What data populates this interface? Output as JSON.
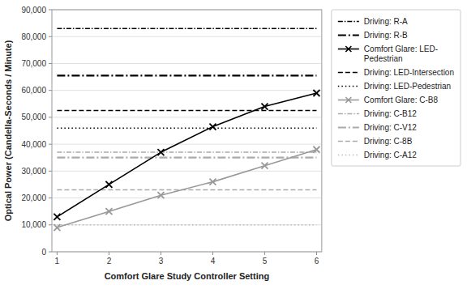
{
  "chart_data": {
    "type": "line",
    "xlabel": "Comfort Glare Study Controller Setting",
    "ylabel": "Optical Power (Candella-Seconds / Minute)",
    "xlim": [
      0.9,
      6.1
    ],
    "xticks": [
      1,
      2,
      3,
      4,
      5,
      6
    ],
    "ylim": [
      0,
      90000
    ],
    "yticks": [
      0,
      {
        "value": 10000,
        "label": "10,000"
      },
      {
        "value": 20000,
        "label": "20,000"
      },
      {
        "value": 30000,
        "label": "30,000"
      },
      {
        "value": 40000,
        "label": "40,000"
      },
      {
        "value": 50000,
        "label": "50,000"
      },
      {
        "value": 60000,
        "label": "60,000"
      },
      {
        "value": 70000,
        "label": "70,000"
      },
      {
        "value": 80000,
        "label": "80,000"
      },
      {
        "value": 90000,
        "label": "90,000"
      }
    ],
    "grid": "y",
    "legend": "right",
    "series": [
      {
        "name": "Driving: R-A",
        "color": "#000000",
        "line_style": "dashdot",
        "x": [
          1,
          6
        ],
        "values": [
          83000,
          83000
        ]
      },
      {
        "name": "Driving: R-B",
        "color": "#000000",
        "line_style": "long-dashdot",
        "x": [
          1,
          6
        ],
        "values": [
          65500,
          65500
        ]
      },
      {
        "name": "Comfort Glare: LED-\nPedestrian",
        "color": "#000000",
        "line_style": "solid",
        "marker": "x",
        "x": [
          1,
          2,
          3,
          4,
          5,
          6
        ],
        "values": [
          13000,
          25000,
          37000,
          46500,
          54000,
          59000
        ]
      },
      {
        "name": "Driving: LED-Intersection",
        "color": "#000000",
        "line_style": "dashed",
        "x": [
          1,
          6
        ],
        "values": [
          52500,
          52500
        ]
      },
      {
        "name": "Driving: LED-Pedestrian",
        "color": "#000000",
        "line_style": "dotted",
        "x": [
          1,
          6
        ],
        "values": [
          46000,
          46000
        ]
      },
      {
        "name": "Comfort Glare: C-B8",
        "color": "#999999",
        "line_style": "solid",
        "marker": "x",
        "x": [
          1,
          2,
          3,
          4,
          5,
          6
        ],
        "values": [
          9000,
          15000,
          21000,
          26000,
          32000,
          38000
        ]
      },
      {
        "name": "Driving: C-B12",
        "color": "#aaaaaa",
        "line_style": "dashdot",
        "x": [
          1,
          6
        ],
        "values": [
          37000,
          37000
        ]
      },
      {
        "name": "Driving: C-V12",
        "color": "#aaaaaa",
        "line_style": "long-dashdot",
        "x": [
          1,
          6
        ],
        "values": [
          35000,
          35000
        ]
      },
      {
        "name": "Driving: C-8B",
        "color": "#aaaaaa",
        "line_style": "dashed",
        "x": [
          1,
          6
        ],
        "values": [
          23000,
          23000
        ]
      },
      {
        "name": "Driving: C-A12",
        "color": "#bbbbbb",
        "line_style": "dotted",
        "x": [
          1,
          6
        ],
        "values": [
          10000,
          10000
        ]
      }
    ]
  }
}
